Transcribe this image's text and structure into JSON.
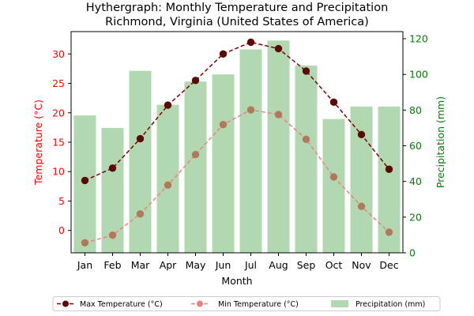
{
  "chart_data": {
    "type": "bar+line",
    "title": "Hythergraph: Monthly Temperature and Precipitation",
    "subtitle": "Richmond, Virginia (United States of America)",
    "xlabel": "Month",
    "ylabel_left": "Temperature (°C)",
    "ylabel_right": "Precipitation (mm)",
    "categories": [
      "Jan",
      "Feb",
      "Mar",
      "Apr",
      "May",
      "Jun",
      "Jul",
      "Aug",
      "Sep",
      "Oct",
      "Nov",
      "Dec"
    ],
    "ylim_left": [
      -3.8,
      33.8
    ],
    "yticks_left": [
      0,
      5,
      10,
      15,
      20,
      25,
      30
    ],
    "ylim_right": [
      0,
      124
    ],
    "yticks_right": [
      0,
      20,
      40,
      60,
      80,
      100,
      120
    ],
    "grid": false,
    "legend_position": "bottom-center",
    "series": [
      {
        "name": "Max Temperature (°C)",
        "axis": "left",
        "kind": "line",
        "color": "#800000",
        "values": [
          8.5,
          10.6,
          15.6,
          21.3,
          25.5,
          30.0,
          32.0,
          30.9,
          27.1,
          21.8,
          16.3,
          10.4
        ]
      },
      {
        "name": "Min Temperature (°C)",
        "axis": "left",
        "kind": "line",
        "color": "#f08080",
        "values": [
          -2.1,
          -0.8,
          2.8,
          7.7,
          12.9,
          18.0,
          20.5,
          19.7,
          15.5,
          9.1,
          4.1,
          -0.3
        ]
      },
      {
        "name": "Precipitation (mm)",
        "axis": "right",
        "kind": "bar",
        "color": "#b2d8b2",
        "values": [
          77,
          70,
          102,
          83,
          96,
          100,
          114,
          119,
          105,
          75,
          82,
          82
        ]
      }
    ]
  }
}
